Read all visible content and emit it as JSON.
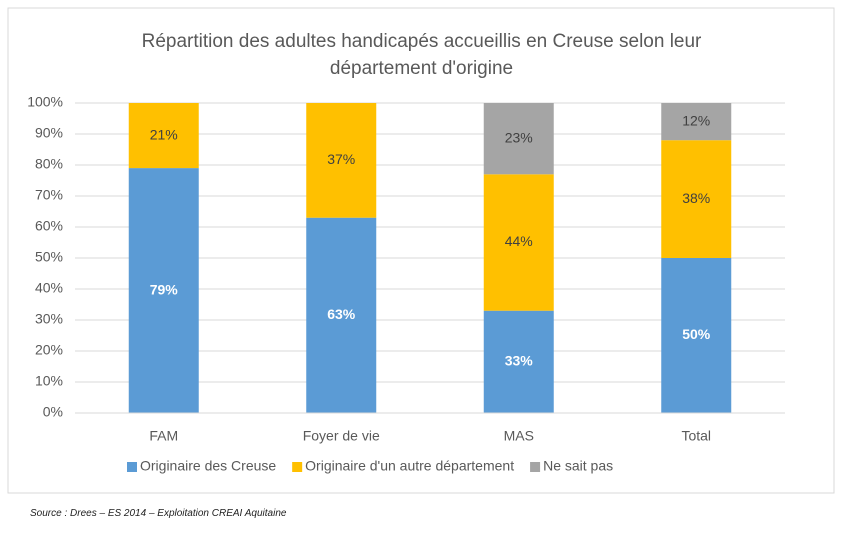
{
  "chart_data": {
    "type": "stacked_bar",
    "title": "Répartition des adultes handicapés accueillis en Creuse selon leur département d'origine",
    "source": "Source : Drees – ES 2014 – Exploitation CREAI Aquitaine",
    "categories": [
      "FAM",
      "Foyer de vie",
      "MAS",
      "Total"
    ],
    "series": [
      {
        "name": "Originaire des Creuse",
        "color": "#5b9bd5",
        "values": [
          79,
          63,
          33,
          50
        ],
        "value_labels": [
          "79%",
          "63%",
          "33%",
          "50%"
        ]
      },
      {
        "name": "Originaire d'un autre département",
        "color": "#ffc000",
        "values": [
          21,
          37,
          44,
          38
        ],
        "value_labels": [
          "21%",
          "37%",
          "44%",
          "38%"
        ]
      },
      {
        "name": "Ne sait pas",
        "color": "#a5a5a5",
        "values": [
          null,
          null,
          23,
          12
        ],
        "value_labels": [
          null,
          null,
          "23%",
          "12%"
        ]
      }
    ],
    "ylim": [
      0,
      100
    ],
    "yticks": [
      {
        "value": 0,
        "label": "0%"
      },
      {
        "value": 10,
        "label": "10%"
      },
      {
        "value": 20,
        "label": "20%"
      },
      {
        "value": 30,
        "label": "30%"
      },
      {
        "value": 40,
        "label": "40%"
      },
      {
        "value": 50,
        "label": "50%"
      },
      {
        "value": 60,
        "label": "60%"
      },
      {
        "value": 70,
        "label": "70%"
      },
      {
        "value": 80,
        "label": "80%"
      },
      {
        "value": 90,
        "label": "90%"
      },
      {
        "value": 100,
        "label": "100%"
      }
    ],
    "grid": true,
    "legend": "bottom"
  }
}
